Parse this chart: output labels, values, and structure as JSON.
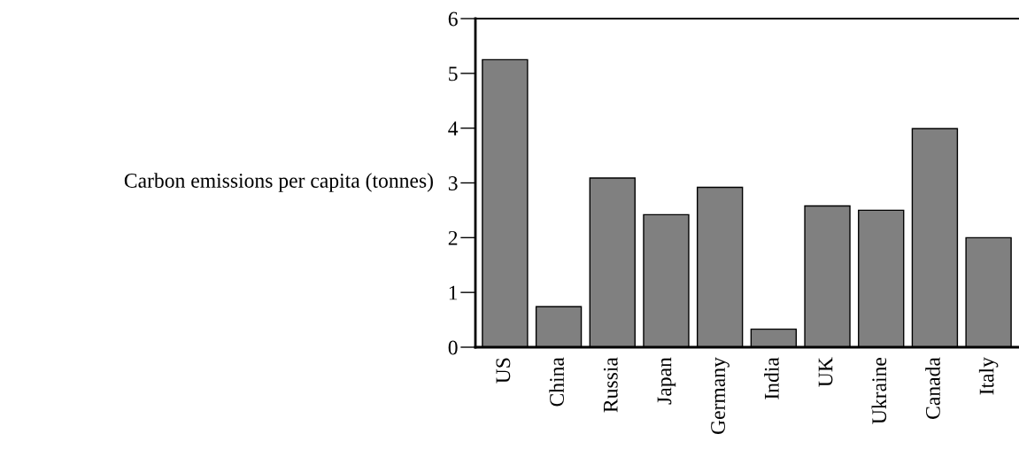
{
  "chart_data": {
    "type": "bar",
    "ylabel": "Carbon emissions per capita (tonnes)",
    "categories": [
      "US",
      "China",
      "Russia",
      "Japan",
      "Germany",
      "India",
      "UK",
      "Ukraine",
      "Canada",
      "Italy"
    ],
    "values": [
      5.25,
      0.74,
      3.09,
      2.42,
      2.92,
      0.33,
      2.58,
      2.5,
      3.99,
      2.0
    ],
    "color": "#808080",
    "ylim": [
      0,
      6
    ],
    "yticks": [
      0,
      1,
      2,
      3,
      4,
      5,
      6
    ],
    "grid": false
  }
}
